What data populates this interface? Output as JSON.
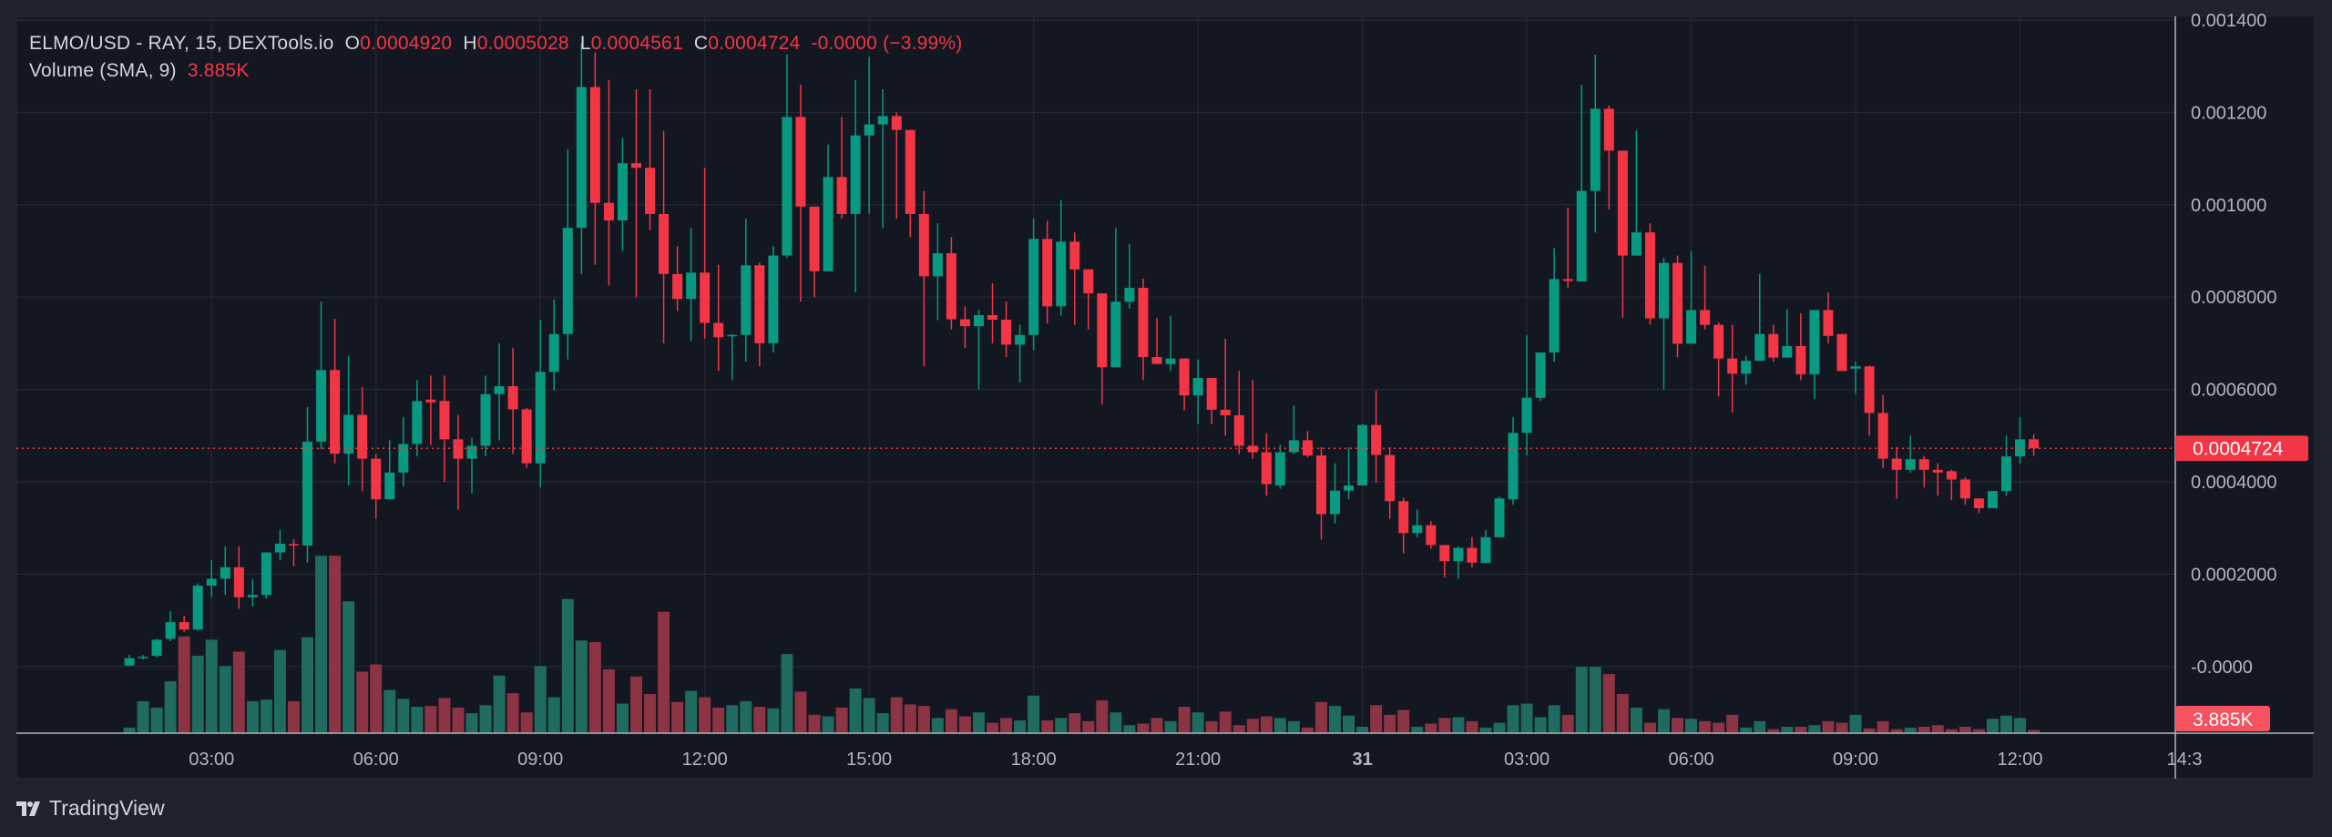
{
  "legend": {
    "symbol": "ELMO/USD - RAY, 15, DEXTools.io",
    "open_label": "O",
    "open": "0.0004920",
    "high_label": "H",
    "high": "0.0005028",
    "low_label": "L",
    "low": "0.0004561",
    "close_label": "C",
    "close": "0.0004724",
    "change": "-0.0000 (−3.99%)",
    "volume_label": "Volume (SMA, 9)",
    "volume_value": "3.885K"
  },
  "price_axis": {
    "labels": [
      "0.001400",
      "0.001200",
      "0.001000",
      "0.0008000",
      "0.0006000",
      "0.0004000",
      "0.0002000",
      "-0.0000"
    ],
    "current_price": "0.0004724",
    "current_volume": "3.885K"
  },
  "branding": {
    "logo_text": "TradingView"
  },
  "colors": {
    "up": "#089981",
    "down": "#f23645",
    "background": "#131722",
    "grid": "#242832"
  },
  "chart_data": {
    "type": "candlestick",
    "interval": "15",
    "price_ticks": [
      0.0014,
      0.0012,
      0.001,
      0.0008,
      0.0006,
      0.0004,
      0.0002,
      0
    ],
    "ylim": [
      0,
      0.0014
    ],
    "x_ticks": [
      "03:00",
      "06:00",
      "09:00",
      "12:00",
      "15:00",
      "18:00",
      "21:00",
      "31",
      "03:00",
      "06:00",
      "09:00",
      "12:00",
      "14:3"
    ],
    "grid": true,
    "ohlc": [
      [
        2e-06,
        2.5e-05,
        1e-06,
        1.8e-05
      ],
      [
        1.8e-05,
        2.5e-05,
        1.5e-05,
        2.1e-05
      ],
      [
        2.3e-05,
        6e-05,
        2e-05,
        5.8e-05
      ],
      [
        6e-05,
        0.00012,
        5.5e-05,
        9.6e-05
      ],
      [
        9.6e-05,
        0.00011,
        7.5e-05,
        8e-05
      ],
      [
        8e-05,
        0.00018,
        7.8e-05,
        0.000175
      ],
      [
        0.000175,
        0.00023,
        0.00015,
        0.00019
      ],
      [
        0.00019,
        0.00026,
        0.000155,
        0.000215
      ],
      [
        0.000215,
        0.00026,
        0.000125,
        0.00015
      ],
      [
        0.00015,
        0.00019,
        0.00013,
        0.000155
      ],
      [
        0.000155,
        0.000247,
        0.000147,
        0.000247
      ],
      [
        0.000247,
        0.000296,
        0.00023,
        0.000266
      ],
      [
        0.000265,
        0.000276,
        0.000217,
        0.000262
      ],
      [
        0.000262,
        0.000562,
        0.000225,
        0.000487
      ],
      [
        0.000487,
        0.00079,
        0.00047,
        0.000642
      ],
      [
        0.000642,
        0.000753,
        0.00044,
        0.000461
      ],
      [
        0.000461,
        0.000672,
        0.000392,
        0.000545
      ],
      [
        0.000545,
        0.000605,
        0.00038,
        0.00045
      ],
      [
        0.00045,
        0.00046,
        0.00032,
        0.000362
      ],
      [
        0.000362,
        0.00049,
        0.000362,
        0.00042
      ],
      [
        0.00042,
        0.00054,
        0.00039,
        0.000482
      ],
      [
        0.000482,
        0.00062,
        0.000455,
        0.000575
      ],
      [
        0.000578,
        0.00063,
        0.00048,
        0.000572
      ],
      [
        0.000575,
        0.00063,
        0.0004,
        0.000492
      ],
      [
        0.000492,
        0.000545,
        0.00034,
        0.00045
      ],
      [
        0.00045,
        0.000495,
        0.000375,
        0.000478
      ],
      [
        0.000478,
        0.00063,
        0.000455,
        0.00059
      ],
      [
        0.00059,
        0.0007,
        0.00049,
        0.000607
      ],
      [
        0.000607,
        0.00069,
        0.00046,
        0.000557
      ],
      [
        0.000557,
        0.00056,
        0.00043,
        0.00044
      ],
      [
        0.00044,
        0.00075,
        0.000388,
        0.000638
      ],
      [
        0.000638,
        0.000795,
        0.000598,
        0.00072
      ],
      [
        0.00072,
        0.00112,
        0.000665,
        0.00095
      ],
      [
        0.00095,
        0.00135,
        0.00085,
        0.001255
      ],
      [
        0.001255,
        0.00133,
        0.00087,
        0.001004
      ],
      [
        0.001004,
        0.00127,
        0.000825,
        0.000966
      ],
      [
        0.000966,
        0.001145,
        0.0009,
        0.00109
      ],
      [
        0.00109,
        0.00125,
        0.0008,
        0.00108
      ],
      [
        0.00108,
        0.00125,
        0.000945,
        0.00098
      ],
      [
        0.00098,
        0.00116,
        0.0007,
        0.00085
      ],
      [
        0.00085,
        0.00091,
        0.00077,
        0.000796
      ],
      [
        0.000796,
        0.00095,
        0.000705,
        0.000853
      ],
      [
        0.000853,
        0.00108,
        0.00071,
        0.000744
      ],
      [
        0.000744,
        0.00087,
        0.00064,
        0.000713
      ],
      [
        0.000715,
        0.00072,
        0.00062,
        0.000718
      ],
      [
        0.000718,
        0.00097,
        0.00066,
        0.000869
      ],
      [
        0.000869,
        0.000875,
        0.00065,
        0.0007
      ],
      [
        0.0007,
        0.00091,
        0.00068,
        0.00089
      ],
      [
        0.00089,
        0.001325,
        0.000885,
        0.00119
      ],
      [
        0.00119,
        0.00126,
        0.00079,
        0.000996
      ],
      [
        0.000996,
        0.000996,
        0.0008,
        0.000856
      ],
      [
        0.000856,
        0.00113,
        0.000856,
        0.00106
      ],
      [
        0.00106,
        0.00119,
        0.00097,
        0.00098
      ],
      [
        0.00098,
        0.00127,
        0.00081,
        0.00115
      ],
      [
        0.00115,
        0.00132,
        0.00098,
        0.001174
      ],
      [
        0.001174,
        0.00125,
        0.00095,
        0.001192
      ],
      [
        0.001192,
        0.0012,
        0.00097,
        0.001162
      ],
      [
        0.001162,
        0.001162,
        0.00093,
        0.00098
      ],
      [
        0.00098,
        0.00103,
        0.00065,
        0.000845
      ],
      [
        0.000845,
        0.00096,
        0.00075,
        0.000895
      ],
      [
        0.000895,
        0.00093,
        0.00073,
        0.000752
      ],
      [
        0.000752,
        0.00078,
        0.00069,
        0.000737
      ],
      [
        0.000737,
        0.000772,
        0.0006,
        0.000761
      ],
      [
        0.000761,
        0.00083,
        0.0007,
        0.000751
      ],
      [
        0.000751,
        0.00079,
        0.00067,
        0.000697
      ],
      [
        0.000697,
        0.00074,
        0.000615,
        0.000718
      ],
      [
        0.000718,
        0.00097,
        0.000685,
        0.000926
      ],
      [
        0.000926,
        0.000965,
        0.000743,
        0.00078
      ],
      [
        0.00078,
        0.00101,
        0.00076,
        0.00092
      ],
      [
        0.00092,
        0.00094,
        0.00074,
        0.00086
      ],
      [
        0.00086,
        0.00086,
        0.00073,
        0.000808
      ],
      [
        0.000808,
        0.000808,
        0.000567,
        0.000648
      ],
      [
        0.000648,
        0.00095,
        0.000648,
        0.00079
      ],
      [
        0.00079,
        0.000915,
        0.000775,
        0.00082
      ],
      [
        0.00082,
        0.00084,
        0.00062,
        0.00067
      ],
      [
        0.00067,
        0.000755,
        0.000655,
        0.000655
      ],
      [
        0.000655,
        0.00076,
        0.00064,
        0.000667
      ],
      [
        0.000667,
        0.000667,
        0.000555,
        0.000587
      ],
      [
        0.000587,
        0.000665,
        0.000525,
        0.000625
      ],
      [
        0.000625,
        0.000625,
        0.000525,
        0.000556
      ],
      [
        0.000556,
        0.00071,
        0.0005,
        0.000544
      ],
      [
        0.000544,
        0.00064,
        0.00046,
        0.000478
      ],
      [
        0.000478,
        0.00062,
        0.00045,
        0.000464
      ],
      [
        0.000464,
        0.000505,
        0.00037,
        0.000395
      ],
      [
        0.000392,
        0.00048,
        0.000385,
        0.000464
      ],
      [
        0.000464,
        0.000565,
        0.00046,
        0.00049
      ],
      [
        0.00049,
        0.00051,
        0.000453,
        0.000457
      ],
      [
        0.000457,
        0.000475,
        0.000275,
        0.00033
      ],
      [
        0.00033,
        0.00044,
        0.00031,
        0.000381
      ],
      [
        0.000381,
        0.000475,
        0.000362,
        0.000392
      ],
      [
        0.000392,
        0.000525,
        0.000392,
        0.000523
      ],
      [
        0.000523,
        0.000598,
        0.000398,
        0.000458
      ],
      [
        0.000458,
        0.000475,
        0.00032,
        0.000358
      ],
      [
        0.000358,
        0.000365,
        0.000245,
        0.000289
      ],
      [
        0.000289,
        0.00034,
        0.00028,
        0.000306
      ],
      [
        0.000306,
        0.000315,
        0.000255,
        0.000263
      ],
      [
        0.000263,
        0.000263,
        0.000193,
        0.000228
      ],
      [
        0.000228,
        0.00026,
        0.00019,
        0.000257
      ],
      [
        0.000257,
        0.00028,
        0.000215,
        0.000225
      ],
      [
        0.000224,
        0.000296,
        0.000224,
        0.00028
      ],
      [
        0.00028,
        0.000368,
        0.00028,
        0.000364
      ],
      [
        0.000362,
        0.00054,
        0.00035,
        0.000506
      ],
      [
        0.000506,
        0.000717,
        0.000457,
        0.000582
      ],
      [
        0.000582,
        0.00068,
        0.000575,
        0.00068
      ],
      [
        0.00068,
        0.000906,
        0.00066,
        0.000839
      ],
      [
        0.000839,
        0.000994,
        0.00082,
        0.000835
      ],
      [
        0.000834,
        0.00126,
        0.000834,
        0.00103
      ],
      [
        0.00103,
        0.001325,
        0.00094,
        0.001208
      ],
      [
        0.001208,
        0.001215,
        0.00099,
        0.001117
      ],
      [
        0.001117,
        0.001117,
        0.000755,
        0.00089
      ],
      [
        0.00089,
        0.00116,
        0.00089,
        0.00094
      ],
      [
        0.00094,
        0.00096,
        0.00074,
        0.000754
      ],
      [
        0.000754,
        0.000885,
        0.0006,
        0.000874
      ],
      [
        0.000874,
        0.00089,
        0.00067,
        0.000699
      ],
      [
        0.000699,
        0.0009,
        0.000699,
        0.000772
      ],
      [
        0.000772,
        0.000868,
        0.00073,
        0.00074
      ],
      [
        0.00074,
        0.000745,
        0.000585,
        0.000667
      ],
      [
        0.000667,
        0.00074,
        0.00055,
        0.000634
      ],
      [
        0.000634,
        0.000673,
        0.00061,
        0.000662
      ],
      [
        0.000662,
        0.00085,
        0.000662,
        0.00072
      ],
      [
        0.00072,
        0.00074,
        0.00066,
        0.000669
      ],
      [
        0.000669,
        0.000774,
        0.000669,
        0.000694
      ],
      [
        0.000694,
        0.000765,
        0.00062,
        0.000633
      ],
      [
        0.000633,
        0.000772,
        0.00058,
        0.000772
      ],
      [
        0.000772,
        0.00081,
        0.0007,
        0.000716
      ],
      [
        0.00072,
        0.00072,
        0.00064,
        0.00064
      ],
      [
        0.000645,
        0.00066,
        0.00059,
        0.00065
      ],
      [
        0.00065,
        0.000652,
        0.0005,
        0.000549
      ],
      [
        0.000549,
        0.000588,
        0.00043,
        0.00045
      ],
      [
        0.00045,
        0.000475,
        0.000363,
        0.000426
      ],
      [
        0.000426,
        0.0005,
        0.00042,
        0.000449
      ],
      [
        0.000449,
        0.000456,
        0.000388,
        0.000426
      ],
      [
        0.000426,
        0.00044,
        0.00037,
        0.00042
      ],
      [
        0.000423,
        0.000426,
        0.00036,
        0.000405
      ],
      [
        0.000405,
        0.00041,
        0.00035,
        0.000364
      ],
      [
        0.000364,
        0.000364,
        0.000332,
        0.000343
      ],
      [
        0.000343,
        0.00038,
        0.000343,
        0.00038
      ],
      [
        0.00038,
        0.0005,
        0.00037,
        0.000455
      ],
      [
        0.000455,
        0.00054,
        0.00044,
        0.000492
      ],
      [
        0.000492,
        0.0005028,
        0.0004561,
        0.0004724
      ]
    ],
    "volume_thousands": [
      7,
      40,
      32,
      65,
      121,
      97,
      117,
      84,
      102,
      40,
      42,
      104,
      40,
      120,
      222,
      222,
      165,
      77,
      86,
      54,
      43,
      33,
      34,
      44,
      32,
      25,
      35,
      72,
      50,
      26,
      84,
      45,
      168,
      116,
      114,
      80,
      37,
      71,
      49,
      152,
      39,
      53,
      45,
      32,
      35,
      40,
      33,
      31,
      99,
      52,
      23,
      21,
      32,
      56,
      44,
      25,
      45,
      36,
      34,
      19,
      30,
      21,
      26,
      13,
      19,
      16,
      47,
      16,
      19,
      25,
      15,
      41,
      26,
      10,
      12,
      19,
      15,
      33,
      26,
      15,
      27,
      10,
      18,
      21,
      19,
      15,
      7,
      39,
      34,
      22,
      8,
      35,
      23,
      29,
      8,
      12,
      19,
      20,
      15,
      7,
      13,
      35,
      37,
      20,
      35,
      23,
      83,
      83,
      74,
      49,
      32,
      13,
      30,
      19,
      18,
      15,
      13,
      23,
      7,
      15,
      5,
      8,
      8,
      10,
      15,
      13,
      23,
      6,
      15,
      5,
      7,
      8,
      10,
      5,
      8,
      5,
      18,
      22,
      19,
      3.885
    ],
    "last_price": 0.0004724
  }
}
